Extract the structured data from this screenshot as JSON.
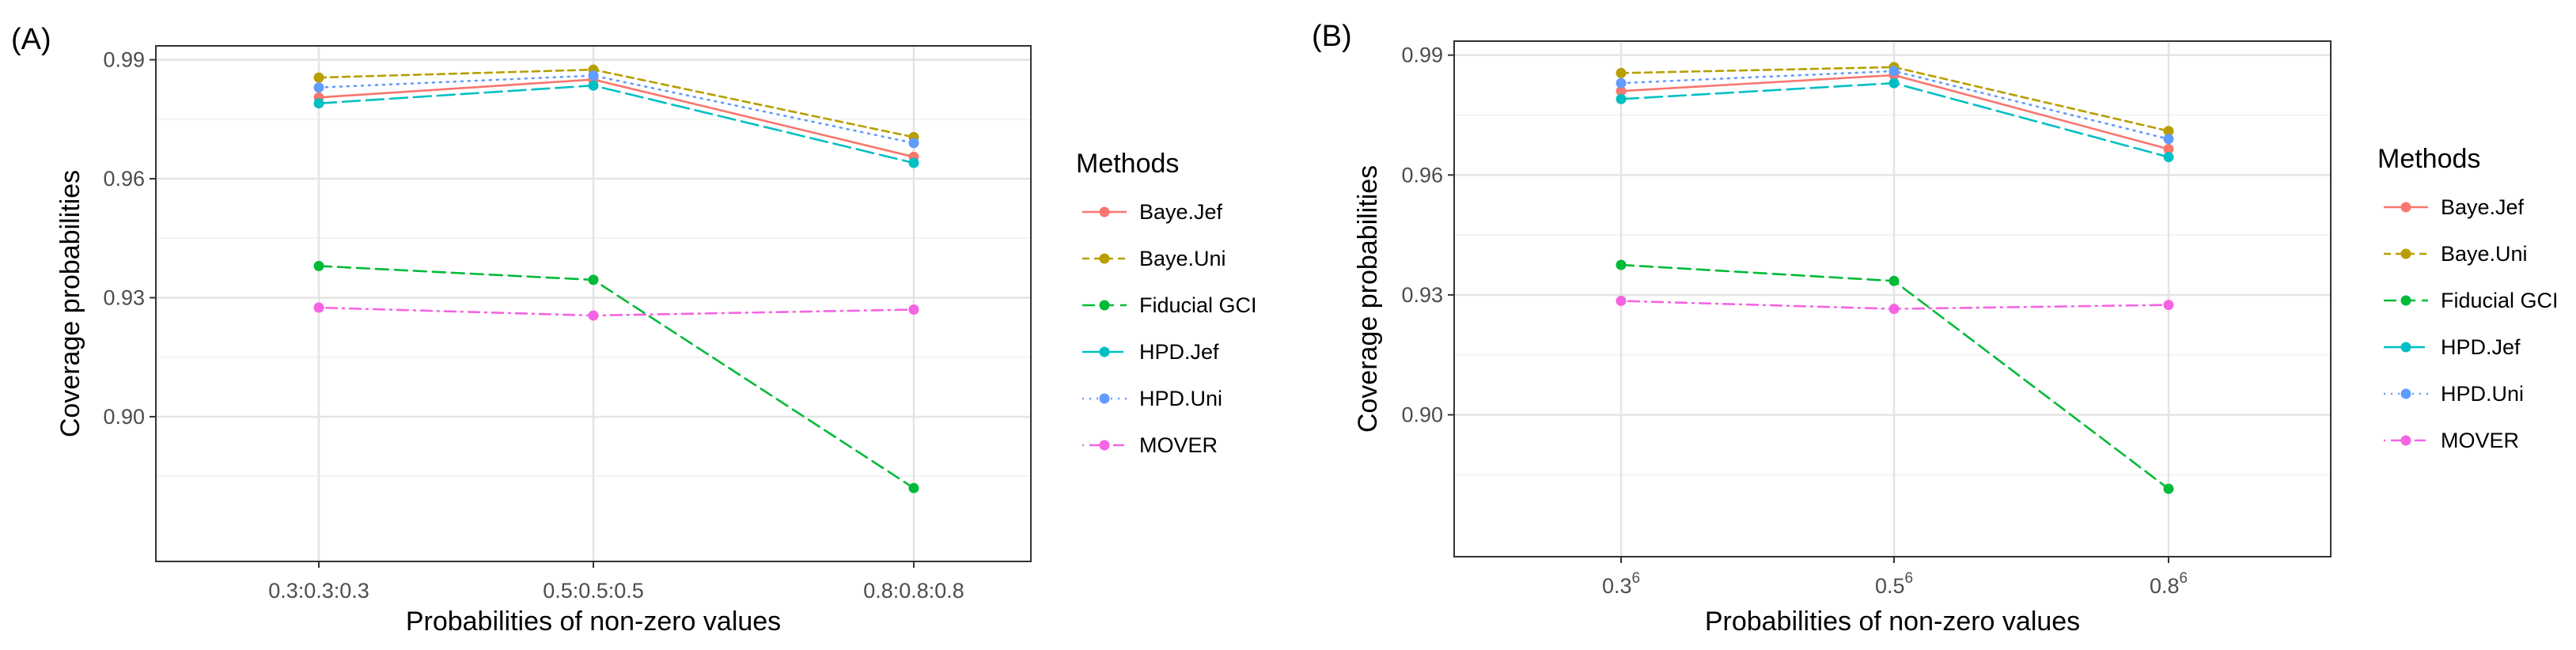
{
  "chart_data": [
    {
      "type": "line",
      "panel_label": "(A)",
      "xlabel": "Probabilities of non-zero values",
      "ylabel": "Coverage probabilities",
      "ylim": [
        0.8635,
        0.9935
      ],
      "yticks": [
        0.9,
        0.93,
        0.96,
        0.99
      ],
      "ytick_labels": [
        "0.90",
        "0.93",
        "0.96",
        "0.99"
      ],
      "categories": [
        {
          "base": "0.3:0.3:0.3",
          "sup": ""
        },
        {
          "base": "0.5:0.5:0.5",
          "sup": ""
        },
        {
          "base": "0.8:0.8:0.8",
          "sup": ""
        }
      ],
      "legend_title": "Methods",
      "grid": true,
      "series": [
        {
          "name": "Baye.Jef",
          "color": "#F8766D",
          "dash": "solid",
          "values": [
            0.9805,
            0.985,
            0.9655
          ]
        },
        {
          "name": "Baye.Uni",
          "color": "#B79F00",
          "dash": "dashed",
          "values": [
            0.9855,
            0.9875,
            0.9705
          ]
        },
        {
          "name": "Fiducial GCI",
          "color": "#00BA38",
          "dash": "longdash",
          "values": [
            0.938,
            0.9345,
            0.882
          ]
        },
        {
          "name": "HPD.Jef",
          "color": "#00BFC4",
          "dash": "longdash2",
          "values": [
            0.979,
            0.9835,
            0.964
          ]
        },
        {
          "name": "HPD.Uni",
          "color": "#619CFF",
          "dash": "dotted",
          "values": [
            0.983,
            0.986,
            0.969
          ]
        },
        {
          "name": "MOVER",
          "color": "#F564E3",
          "dash": "dotdash",
          "values": [
            0.9275,
            0.9255,
            0.927
          ]
        }
      ]
    },
    {
      "type": "line",
      "panel_label": "(B)",
      "xlabel": "Probabilities of non-zero values",
      "ylabel": "Coverage probabilities",
      "ylim": [
        0.8645,
        0.9935
      ],
      "yticks": [
        0.9,
        0.93,
        0.96,
        0.99
      ],
      "ytick_labels": [
        "0.90",
        "0.93",
        "0.96",
        "0.99"
      ],
      "categories": [
        {
          "base": "0.3",
          "sup": "6"
        },
        {
          "base": "0.5",
          "sup": "6"
        },
        {
          "base": "0.8",
          "sup": "6"
        }
      ],
      "legend_title": "Methods",
      "grid": true,
      "series": [
        {
          "name": "Baye.Jef",
          "color": "#F8766D",
          "dash": "solid",
          "values": [
            0.981,
            0.985,
            0.9665
          ]
        },
        {
          "name": "Baye.Uni",
          "color": "#B79F00",
          "dash": "dashed",
          "values": [
            0.9855,
            0.987,
            0.971
          ]
        },
        {
          "name": "Fiducial GCI",
          "color": "#00BA38",
          "dash": "longdash",
          "values": [
            0.9375,
            0.9335,
            0.8815
          ]
        },
        {
          "name": "HPD.Jef",
          "color": "#00BFC4",
          "dash": "longdash2",
          "values": [
            0.979,
            0.983,
            0.9645
          ]
        },
        {
          "name": "HPD.Uni",
          "color": "#619CFF",
          "dash": "dotted",
          "values": [
            0.983,
            0.986,
            0.969
          ]
        },
        {
          "name": "MOVER",
          "color": "#F564E3",
          "dash": "dotdash",
          "values": [
            0.9285,
            0.9265,
            0.9275
          ]
        }
      ]
    }
  ]
}
